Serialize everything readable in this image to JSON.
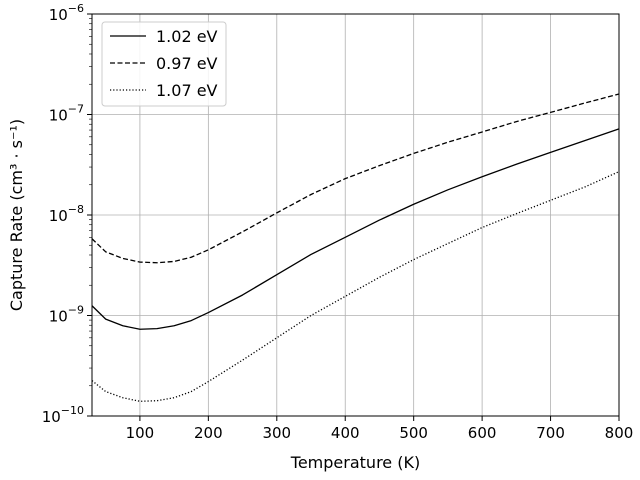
{
  "chart_data": {
    "type": "line",
    "xlabel": "Temperature (K)",
    "ylabel": "Capture Rate (cm³ · s⁻¹)",
    "xlim": [
      30,
      800
    ],
    "ylim": [
      1e-10,
      1e-06
    ],
    "yscale": "log",
    "grid": true,
    "legend_position": "top-left",
    "x_ticks": [
      100,
      200,
      300,
      400,
      500,
      600,
      700,
      800
    ],
    "x_tick_labels": [
      "100",
      "200",
      "300",
      "400",
      "500",
      "600",
      "700",
      "800"
    ],
    "y_ticks": [
      {
        "value": 1e-10,
        "base": "10",
        "exp": "−10"
      },
      {
        "value": 1e-09,
        "base": "10",
        "exp": "−9"
      },
      {
        "value": 1e-08,
        "base": "10",
        "exp": "−8"
      },
      {
        "value": 1e-07,
        "base": "10",
        "exp": "−7"
      },
      {
        "value": 1e-06,
        "base": "10",
        "exp": "−6"
      }
    ],
    "x": [
      30,
      50,
      75,
      100,
      125,
      150,
      175,
      200,
      250,
      300,
      350,
      400,
      450,
      500,
      550,
      600,
      650,
      700,
      750,
      800
    ],
    "series": [
      {
        "name": "1.02 eV",
        "dash": "solid",
        "color": "#000000",
        "values": [
          1.25e-09,
          9.2e-10,
          7.9e-10,
          7.3e-10,
          7.4e-10,
          7.9e-10,
          8.9e-10,
          1.07e-09,
          1.6e-09,
          2.55e-09,
          4.05e-09,
          6e-09,
          8.9e-09,
          1.28e-08,
          1.78e-08,
          2.4e-08,
          3.2e-08,
          4.2e-08,
          5.5e-08,
          7.2e-08
        ]
      },
      {
        "name": "0.97 eV",
        "dash": "dashed",
        "color": "#000000",
        "values": [
          5.8e-09,
          4.3e-09,
          3.7e-09,
          3.4e-09,
          3.35e-09,
          3.45e-09,
          3.8e-09,
          4.5e-09,
          6.8e-09,
          1.05e-08,
          1.6e-08,
          2.3e-08,
          3.1e-08,
          4.1e-08,
          5.3e-08,
          6.7e-08,
          8.5e-08,
          1.05e-07,
          1.3e-07,
          1.6e-07
        ]
      },
      {
        "name": "1.07 eV",
        "dash": "dotted",
        "color": "#000000",
        "values": [
          2.25e-10,
          1.75e-10,
          1.52e-10,
          1.4e-10,
          1.42e-10,
          1.52e-10,
          1.75e-10,
          2.2e-10,
          3.6e-10,
          6e-10,
          1e-09,
          1.55e-09,
          2.4e-09,
          3.6e-09,
          5.2e-09,
          7.5e-09,
          1.03e-08,
          1.4e-08,
          1.9e-08,
          2.7e-08
        ]
      }
    ]
  }
}
